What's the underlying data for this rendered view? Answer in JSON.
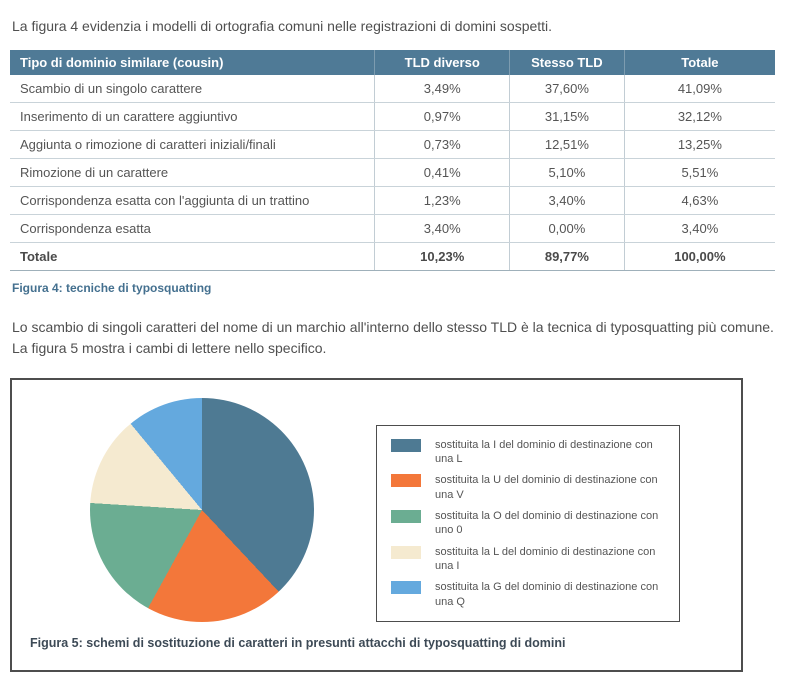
{
  "page": {
    "paragraph1": "La figura 4 evidenzia i modelli di ortografia comuni nelle registrazioni di domini sospetti.",
    "paragraph2": "Lo scambio di singoli caratteri del nome di un marchio all'interno dello stesso TLD è la tecnica di typosquatting più comune. La figura 5 mostra i cambi di lettere nello specifico."
  },
  "table": {
    "caption": "Figura 4: tecniche di typosquatting",
    "headers": [
      "Tipo di dominio similare (cousin)",
      "TLD diverso",
      "Stesso TLD",
      "Totale"
    ],
    "rows": [
      [
        "Scambio di un singolo carattere",
        "3,49%",
        "37,60%",
        "41,09%"
      ],
      [
        "Inserimento di un carattere aggiuntivo",
        "0,97%",
        "31,15%",
        "32,12%"
      ],
      [
        "Aggiunta o rimozione di caratteri iniziali/finali",
        "0,73%",
        "12,51%",
        "13,25%"
      ],
      [
        "Rimozione di un carattere",
        "0,41%",
        "5,10%",
        "5,51%"
      ],
      [
        "Corrispondenza esatta con l'aggiunta di un trattino",
        "1,23%",
        "3,40%",
        "4,63%"
      ],
      [
        "Corrispondenza esatta",
        "3,40%",
        "0,00%",
        "3,40%"
      ]
    ],
    "total_row": [
      "Totale",
      "10,23%",
      "89,77%",
      "100,00%"
    ],
    "header_bg": "#4f7a96"
  },
  "figure5": {
    "caption": "Figura 5: schemi di sostituzione di caratteri in presunti attacchi di typosquatting di domini"
  },
  "chart_data": {
    "type": "pie",
    "title": "",
    "labels": [
      "sostituita la I del dominio di destinazione con una L",
      "sostituita la U del dominio di destinazione con una V",
      "sostituita la O del dominio di destinazione con uno 0",
      "sostituita la L del dominio di destinazione con una I",
      "sostituita la G del dominio di destinazione con una Q"
    ],
    "values": [
      38,
      20,
      18,
      13,
      11
    ],
    "colors": [
      "#4e7a93",
      "#f3773a",
      "#6bad92",
      "#f5ead0",
      "#64a9de"
    ],
    "legend_position": "right",
    "start_angle_deg": 0,
    "direction": "clockwise"
  }
}
